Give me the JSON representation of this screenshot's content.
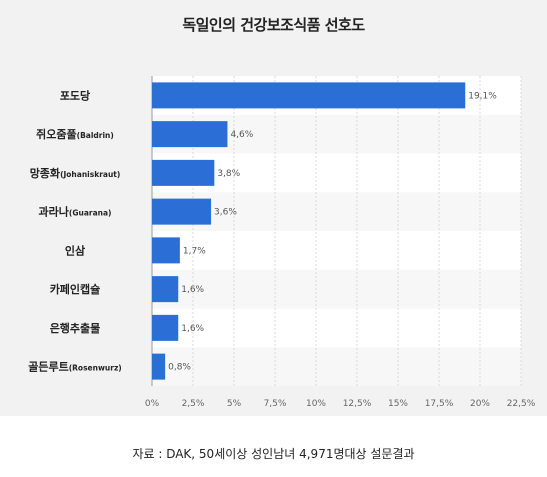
{
  "source_note": "자료 : DAK, 50세이상 성인남녀 4,971명대상 설문결과",
  "colors": {
    "bar": "#2b6fd6",
    "panel": "#f2f2f2",
    "plot": "#ffffff",
    "stripe": "#f7f7f7"
  },
  "chart_data": {
    "type": "bar",
    "orientation": "horizontal",
    "title": "독일인의 건강보조식품 선호도",
    "categories": [
      {
        "label": "포도당",
        "sub": ""
      },
      {
        "label": "쥐오줌풀",
        "sub": "(Baldrin)"
      },
      {
        "label": "망종화",
        "sub": "(Johaniskraut)"
      },
      {
        "label": "과라나",
        "sub": "(Guarana)"
      },
      {
        "label": "인삼",
        "sub": ""
      },
      {
        "label": "카페인캡슐",
        "sub": ""
      },
      {
        "label": "은행추출물",
        "sub": ""
      },
      {
        "label": "골든루트",
        "sub": "(Rosenwurz)"
      }
    ],
    "values": [
      19.1,
      4.6,
      3.8,
      3.6,
      1.7,
      1.6,
      1.6,
      0.8
    ],
    "value_labels": [
      "19,1%",
      "4,6%",
      "3,8%",
      "3,6%",
      "1,7%",
      "1,6%",
      "1,6%",
      "0,8%"
    ],
    "xlim": [
      0,
      22.5
    ],
    "xticks": [
      0,
      2.5,
      5,
      7.5,
      10,
      12.5,
      15,
      17.5,
      20,
      22.5
    ],
    "xtick_labels": [
      "0%",
      "2,5%",
      "5%",
      "7,5%",
      "10%",
      "12,5%",
      "15%",
      "17,5%",
      "20%",
      "22,5%"
    ],
    "grid": true,
    "legend": "none"
  }
}
